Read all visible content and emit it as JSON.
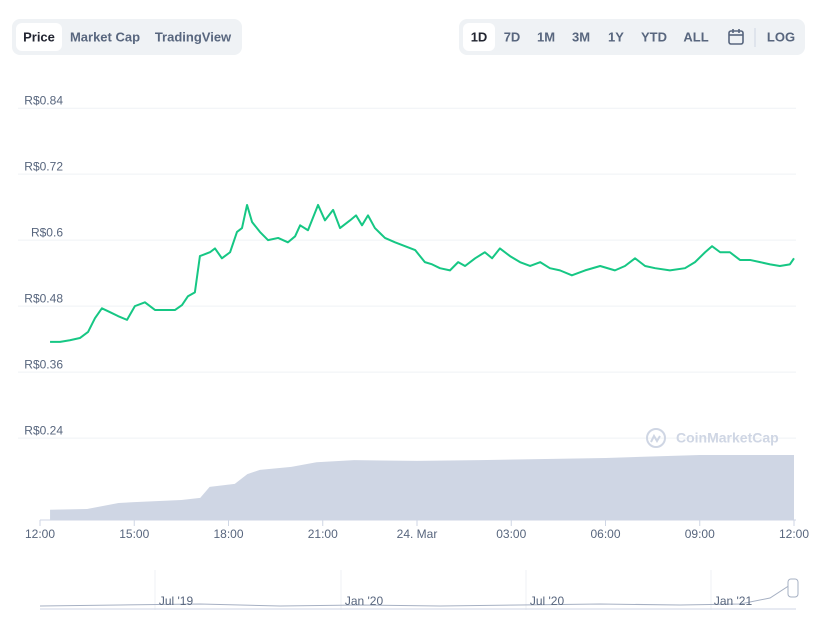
{
  "tabs": [
    "Price",
    "Market Cap",
    "TradingView"
  ],
  "ranges": [
    "1D",
    "7D",
    "1M",
    "3M",
    "1Y",
    "YTD",
    "ALL",
    "LOG"
  ],
  "watermark": "CoinMarketCap",
  "navigator": {
    "labels": [
      "Jul '19",
      "Jan '20",
      "Jul '20",
      "Jan '21"
    ]
  },
  "chart_data": {
    "type": "line",
    "x": [
      0.32,
      0.64,
      0.95,
      1.27,
      1.53,
      1.75,
      1.97,
      2.23,
      2.48,
      2.77,
      3.02,
      3.34,
      3.66,
      3.98,
      4.3,
      4.52,
      4.71,
      4.93,
      5.09,
      5.41,
      5.57,
      5.79,
      6.05,
      6.27,
      6.43,
      6.59,
      6.75,
      7.0,
      7.26,
      7.58,
      7.89,
      8.12,
      8.28,
      8.53,
      8.85,
      9.07,
      9.33,
      9.55,
      9.87,
      10.06,
      10.25,
      10.44,
      10.66,
      10.98,
      11.3,
      11.62,
      11.94,
      12.25,
      12.48,
      12.73,
      13.05,
      13.31,
      13.53,
      13.85,
      14.16,
      14.39,
      14.64,
      14.96,
      15.28,
      15.6,
      15.92,
      16.23,
      16.55,
      16.93,
      17.35,
      17.83,
      18.3,
      18.62,
      18.94,
      19.26,
      19.58,
      20.05,
      20.53,
      20.85,
      21.17,
      21.39,
      21.65,
      21.96,
      22.28,
      22.6,
      22.92,
      23.24,
      23.55,
      23.87,
      24.0
    ],
    "series": [
      {
        "color": "#16c784",
        "values": [
          0.415,
          0.415,
          0.418,
          0.422,
          0.433,
          0.458,
          0.476,
          0.469,
          0.462,
          0.455,
          0.48,
          0.487,
          0.473,
          0.473,
          0.473,
          0.482,
          0.498,
          0.505,
          0.571,
          0.578,
          0.585,
          0.567,
          0.578,
          0.615,
          0.622,
          0.664,
          0.633,
          0.615,
          0.6,
          0.604,
          0.596,
          0.607,
          0.627,
          0.618,
          0.664,
          0.636,
          0.655,
          0.622,
          0.636,
          0.645,
          0.627,
          0.645,
          0.622,
          0.604,
          0.596,
          0.589,
          0.582,
          0.56,
          0.556,
          0.549,
          0.545,
          0.56,
          0.553,
          0.567,
          0.578,
          0.567,
          0.585,
          0.571,
          0.56,
          0.553,
          0.56,
          0.549,
          0.545,
          0.536,
          0.545,
          0.553,
          0.545,
          0.553,
          0.567,
          0.553,
          0.549,
          0.545,
          0.549,
          0.56,
          0.578,
          0.589,
          0.578,
          0.578,
          0.564,
          0.564,
          0.56,
          0.556,
          0.553,
          0.556,
          0.567
        ]
      }
    ],
    "volume": {
      "color": "#cfd6e4",
      "x": [
        0.32,
        1.5,
        2.5,
        3.0,
        4.5,
        5.1,
        5.4,
        6.2,
        6.6,
        7.0,
        8.0,
        8.8,
        10.0,
        12.0,
        14.0,
        18.0,
        21.0,
        24.0
      ],
      "values": [
        2.4,
        2.6,
        4.0,
        4.2,
        4.7,
        5.2,
        7.8,
        8.5,
        10.8,
        11.8,
        12.5,
        13.6,
        14.1,
        13.9,
        14.1,
        14.6,
        15.3,
        15.3
      ]
    },
    "y2lim": [
      0,
      100
    ],
    "xlim": [
      0,
      24
    ],
    "xticks": [
      {
        "value": 0,
        "label": "12:00"
      },
      {
        "value": 3,
        "label": "15:00"
      },
      {
        "value": 6,
        "label": "18:00"
      },
      {
        "value": 9,
        "label": "21:00"
      },
      {
        "value": 12,
        "label": "24. Mar"
      },
      {
        "value": 15,
        "label": "03:00"
      },
      {
        "value": 18,
        "label": "06:00"
      },
      {
        "value": 21,
        "label": "09:00"
      },
      {
        "value": 24,
        "label": "12:00"
      }
    ],
    "ylim": [
      0.091,
      0.864
    ],
    "yticks": [
      {
        "value": 0.84,
        "label": "R$0.84"
      },
      {
        "value": 0.72,
        "label": "R$0.72"
      },
      {
        "value": 0.6,
        "label": "R$0.6"
      },
      {
        "value": 0.48,
        "label": "R$0.48"
      },
      {
        "value": 0.36,
        "label": "R$0.36"
      },
      {
        "value": 0.24,
        "label": "R$0.24"
      }
    ],
    "grid": true
  }
}
